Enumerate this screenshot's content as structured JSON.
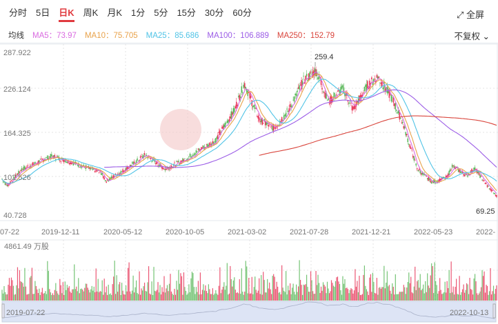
{
  "tabs": [
    "分时",
    "5日",
    "日K",
    "周K",
    "月K",
    "1分",
    "5分",
    "15分",
    "30分",
    "60分"
  ],
  "active_tab": 2,
  "fullscreen_label": "全屏",
  "ma": {
    "label": "均线",
    "items": [
      {
        "text": "MA5：73.97",
        "color": "#d96ae0"
      },
      {
        "text": "MA10：75.705",
        "color": "#e8a24a"
      },
      {
        "text": "MA25：85.686",
        "color": "#4fc3e6"
      },
      {
        "text": "MA100：106.889",
        "color": "#9b5ce6"
      },
      {
        "text": "MA250：152.79",
        "color": "#d9443b"
      }
    ]
  },
  "adjust_label": "不复权",
  "price_axis": [
    "287.922",
    "226.124",
    "164.325",
    "102.526",
    "40.728"
  ],
  "price_range": [
    40.728,
    287.922
  ],
  "high_label": "259.4",
  "low_label": "69.25",
  "date_axis": [
    "07-22",
    "2019-12-11",
    "2020-05-12",
    "2020-10-05",
    "2021-03-02",
    "2021-07-28",
    "2021-12-21",
    "2022-05-23",
    "2022-"
  ],
  "volume_label": "4861.49 万股",
  "navigator": {
    "start": "2019-07-22",
    "end": "2022-10-13"
  },
  "colors": {
    "up": "#e8385a",
    "down": "#5cb85c",
    "accent": "#e0393e"
  },
  "price_path": [
    [
      0,
      95
    ],
    [
      0.01,
      85
    ],
    [
      0.04,
      110
    ],
    [
      0.1,
      130
    ],
    [
      0.15,
      118
    ],
    [
      0.2,
      105
    ],
    [
      0.21,
      92
    ],
    [
      0.25,
      110
    ],
    [
      0.29,
      132
    ],
    [
      0.33,
      110
    ],
    [
      0.37,
      125
    ],
    [
      0.4,
      140
    ],
    [
      0.43,
      152
    ],
    [
      0.47,
      200
    ],
    [
      0.49,
      240
    ],
    [
      0.52,
      185
    ],
    [
      0.55,
      172
    ],
    [
      0.58,
      200
    ],
    [
      0.61,
      245
    ],
    [
      0.635,
      259
    ],
    [
      0.66,
      212
    ],
    [
      0.69,
      232
    ],
    [
      0.71,
      200
    ],
    [
      0.74,
      238
    ],
    [
      0.76,
      250
    ],
    [
      0.79,
      215
    ],
    [
      0.81,
      180
    ],
    [
      0.84,
      110
    ],
    [
      0.87,
      90
    ],
    [
      0.9,
      98
    ],
    [
      0.91,
      115
    ],
    [
      0.94,
      100
    ],
    [
      0.955,
      112
    ],
    [
      0.98,
      86
    ],
    [
      1,
      69.25
    ]
  ]
}
